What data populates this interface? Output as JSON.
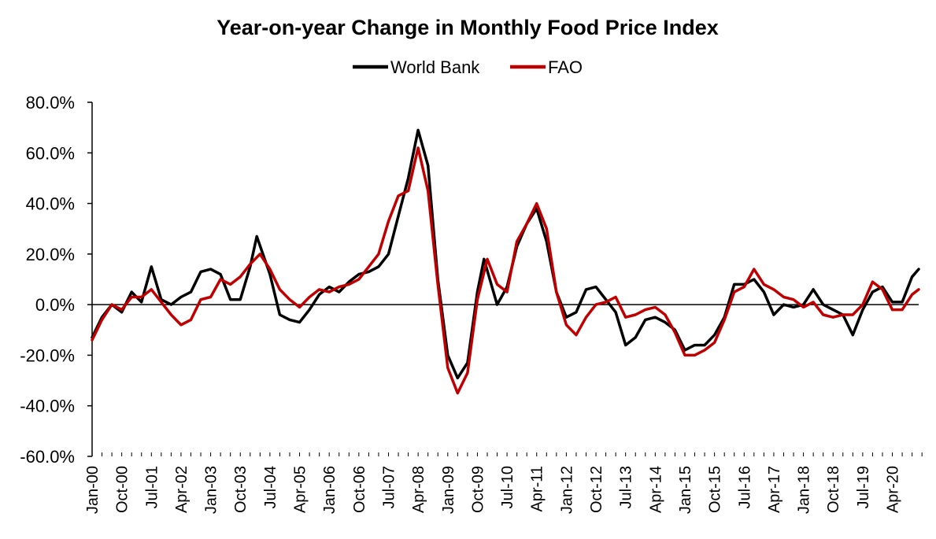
{
  "chart_data": {
    "type": "line",
    "title": "Year-on-year Change in Monthly Food Price Index",
    "xlabel": "",
    "ylabel": "",
    "ylim": [
      -0.6,
      0.8
    ],
    "y_ticks": [
      0.8,
      0.6,
      0.4,
      0.2,
      0.0,
      -0.2,
      -0.4,
      -0.6
    ],
    "y_tick_labels": [
      "80.0%",
      "60.0%",
      "40.0%",
      "20.0%",
      "0.0%",
      "-20.0%",
      "-40.0%",
      "-60.0%"
    ],
    "x_range": [
      "Jan-00",
      "Dec-20"
    ],
    "x_tick_labels": [
      "Jan-00",
      "Oct-00",
      "Jul-01",
      "Apr-02",
      "Jan-03",
      "Oct-03",
      "Jul-04",
      "Apr-05",
      "Jan-06",
      "Oct-06",
      "Jul-07",
      "Apr-08",
      "Jan-09",
      "Oct-09",
      "Jul-10",
      "Apr-11",
      "Jan-12",
      "Oct-12",
      "Jul-13",
      "Apr-14",
      "Jan-15",
      "Oct-15",
      "Jul-16",
      "Apr-17",
      "Jan-18",
      "Oct-18",
      "Jul-19",
      "Apr-20"
    ],
    "legend_position": "top-center",
    "grid": false,
    "series": [
      {
        "name": "World Bank",
        "color": "#000000",
        "points": [
          [
            "Jan-00",
            -0.13
          ],
          [
            "Apr-00",
            -0.05
          ],
          [
            "Jul-00",
            0.0
          ],
          [
            "Oct-00",
            -0.03
          ],
          [
            "Jan-01",
            0.05
          ],
          [
            "Apr-01",
            0.01
          ],
          [
            "Jul-01",
            0.15
          ],
          [
            "Oct-01",
            0.02
          ],
          [
            "Jan-02",
            0.0
          ],
          [
            "Apr-02",
            0.03
          ],
          [
            "Jul-02",
            0.05
          ],
          [
            "Oct-02",
            0.13
          ],
          [
            "Jan-03",
            0.14
          ],
          [
            "Apr-03",
            0.12
          ],
          [
            "Jul-03",
            0.02
          ],
          [
            "Oct-03",
            0.02
          ],
          [
            "Jan-04",
            0.15
          ],
          [
            "Mar-04",
            0.27
          ],
          [
            "Jul-04",
            0.12
          ],
          [
            "Oct-04",
            -0.04
          ],
          [
            "Jan-05",
            -0.06
          ],
          [
            "Apr-05",
            -0.07
          ],
          [
            "Jul-05",
            -0.02
          ],
          [
            "Oct-05",
            0.04
          ],
          [
            "Jan-06",
            0.07
          ],
          [
            "Apr-06",
            0.05
          ],
          [
            "Jul-06",
            0.09
          ],
          [
            "Oct-06",
            0.12
          ],
          [
            "Jan-07",
            0.13
          ],
          [
            "Apr-07",
            0.15
          ],
          [
            "Jul-07",
            0.2
          ],
          [
            "Oct-07",
            0.35
          ],
          [
            "Jan-08",
            0.5
          ],
          [
            "Apr-08",
            0.69
          ],
          [
            "Jul-08",
            0.55
          ],
          [
            "Oct-08",
            0.1
          ],
          [
            "Jan-09",
            -0.2
          ],
          [
            "Apr-09",
            -0.29
          ],
          [
            "Jul-09",
            -0.23
          ],
          [
            "Oct-09",
            0.05
          ],
          [
            "Dec-09",
            0.18
          ],
          [
            "Apr-10",
            0.0
          ],
          [
            "Jul-10",
            0.07
          ],
          [
            "Oct-10",
            0.23
          ],
          [
            "Jan-11",
            0.32
          ],
          [
            "Apr-11",
            0.38
          ],
          [
            "Jul-11",
            0.25
          ],
          [
            "Oct-11",
            0.05
          ],
          [
            "Jan-12",
            -0.05
          ],
          [
            "Apr-12",
            -0.03
          ],
          [
            "Jul-12",
            0.06
          ],
          [
            "Oct-12",
            0.07
          ],
          [
            "Jan-13",
            0.02
          ],
          [
            "Apr-13",
            -0.03
          ],
          [
            "Jul-13",
            -0.16
          ],
          [
            "Oct-13",
            -0.13
          ],
          [
            "Jan-14",
            -0.06
          ],
          [
            "Apr-14",
            -0.05
          ],
          [
            "Jul-14",
            -0.07
          ],
          [
            "Oct-14",
            -0.1
          ],
          [
            "Jan-15",
            -0.18
          ],
          [
            "Apr-15",
            -0.16
          ],
          [
            "Jul-15",
            -0.16
          ],
          [
            "Oct-15",
            -0.12
          ],
          [
            "Jan-16",
            -0.05
          ],
          [
            "Apr-16",
            0.08
          ],
          [
            "Jul-16",
            0.08
          ],
          [
            "Oct-16",
            0.1
          ],
          [
            "Jan-17",
            0.05
          ],
          [
            "Apr-17",
            -0.04
          ],
          [
            "Jul-17",
            0.0
          ],
          [
            "Oct-17",
            -0.01
          ],
          [
            "Jan-18",
            0.0
          ],
          [
            "Apr-18",
            0.06
          ],
          [
            "Jul-18",
            0.0
          ],
          [
            "Oct-18",
            -0.02
          ],
          [
            "Jan-19",
            -0.04
          ],
          [
            "Apr-19",
            -0.12
          ],
          [
            "Jul-19",
            -0.02
          ],
          [
            "Oct-19",
            0.05
          ],
          [
            "Jan-20",
            0.07
          ],
          [
            "Apr-20",
            0.01
          ],
          [
            "Jul-20",
            0.01
          ],
          [
            "Oct-20",
            0.11
          ],
          [
            "Dec-20",
            0.14
          ]
        ]
      },
      {
        "name": "FAO",
        "color": "#c00000",
        "points": [
          [
            "Jan-00",
            -0.14
          ],
          [
            "Apr-00",
            -0.06
          ],
          [
            "Jul-00",
            0.0
          ],
          [
            "Oct-00",
            -0.02
          ],
          [
            "Jan-01",
            0.03
          ],
          [
            "Apr-01",
            0.03
          ],
          [
            "Jul-01",
            0.06
          ],
          [
            "Oct-01",
            0.01
          ],
          [
            "Jan-02",
            -0.04
          ],
          [
            "Apr-02",
            -0.08
          ],
          [
            "Jul-02",
            -0.06
          ],
          [
            "Oct-02",
            0.02
          ],
          [
            "Jan-03",
            0.03
          ],
          [
            "Apr-03",
            0.1
          ],
          [
            "Jul-03",
            0.08
          ],
          [
            "Oct-03",
            0.11
          ],
          [
            "Jan-04",
            0.16
          ],
          [
            "Apr-04",
            0.2
          ],
          [
            "Jul-04",
            0.14
          ],
          [
            "Oct-04",
            0.06
          ],
          [
            "Jan-05",
            0.02
          ],
          [
            "Apr-05",
            -0.01
          ],
          [
            "Jul-05",
            0.03
          ],
          [
            "Oct-05",
            0.06
          ],
          [
            "Jan-06",
            0.05
          ],
          [
            "Apr-06",
            0.07
          ],
          [
            "Jul-06",
            0.08
          ],
          [
            "Oct-06",
            0.1
          ],
          [
            "Jan-07",
            0.15
          ],
          [
            "Apr-07",
            0.2
          ],
          [
            "Jul-07",
            0.33
          ],
          [
            "Oct-07",
            0.43
          ],
          [
            "Jan-08",
            0.45
          ],
          [
            "Apr-08",
            0.62
          ],
          [
            "Jul-08",
            0.45
          ],
          [
            "Oct-08",
            0.08
          ],
          [
            "Jan-09",
            -0.25
          ],
          [
            "Apr-09",
            -0.35
          ],
          [
            "Jul-09",
            -0.27
          ],
          [
            "Oct-09",
            0.02
          ],
          [
            "Jan-10",
            0.18
          ],
          [
            "Apr-10",
            0.08
          ],
          [
            "Jul-10",
            0.05
          ],
          [
            "Oct-10",
            0.25
          ],
          [
            "Jan-11",
            0.32
          ],
          [
            "Apr-11",
            0.4
          ],
          [
            "Jul-11",
            0.3
          ],
          [
            "Oct-11",
            0.05
          ],
          [
            "Jan-12",
            -0.08
          ],
          [
            "Apr-12",
            -0.12
          ],
          [
            "Jul-12",
            -0.05
          ],
          [
            "Oct-12",
            0.0
          ],
          [
            "Jan-13",
            0.01
          ],
          [
            "Apr-13",
            0.03
          ],
          [
            "Jul-13",
            -0.05
          ],
          [
            "Oct-13",
            -0.04
          ],
          [
            "Jan-14",
            -0.02
          ],
          [
            "Apr-14",
            -0.01
          ],
          [
            "Jul-14",
            -0.04
          ],
          [
            "Oct-14",
            -0.11
          ],
          [
            "Jan-15",
            -0.2
          ],
          [
            "Apr-15",
            -0.2
          ],
          [
            "Jul-15",
            -0.18
          ],
          [
            "Oct-15",
            -0.15
          ],
          [
            "Jan-16",
            -0.06
          ],
          [
            "Apr-16",
            0.05
          ],
          [
            "Jul-16",
            0.07
          ],
          [
            "Oct-16",
            0.14
          ],
          [
            "Jan-17",
            0.08
          ],
          [
            "Apr-17",
            0.06
          ],
          [
            "Jul-17",
            0.03
          ],
          [
            "Oct-17",
            0.02
          ],
          [
            "Jan-18",
            -0.01
          ],
          [
            "Apr-18",
            0.01
          ],
          [
            "Jul-18",
            -0.04
          ],
          [
            "Oct-18",
            -0.05
          ],
          [
            "Jan-19",
            -0.04
          ],
          [
            "Apr-19",
            -0.04
          ],
          [
            "Jul-19",
            0.0
          ],
          [
            "Oct-19",
            0.09
          ],
          [
            "Jan-20",
            0.06
          ],
          [
            "Apr-20",
            -0.02
          ],
          [
            "Jul-20",
            -0.02
          ],
          [
            "Oct-20",
            0.04
          ],
          [
            "Dec-20",
            0.06
          ]
        ]
      }
    ]
  }
}
